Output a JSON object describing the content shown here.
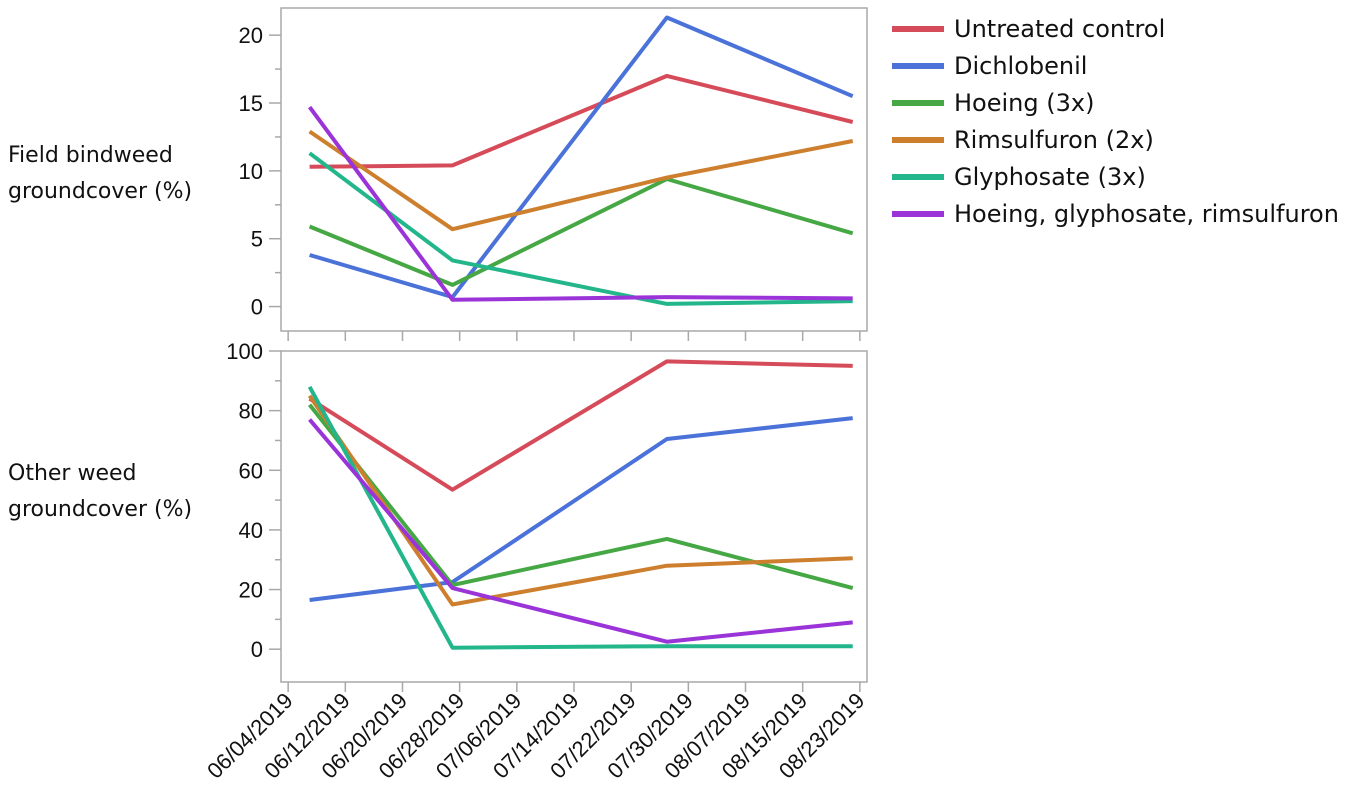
{
  "chart_data": [
    {
      "type": "line",
      "ylabel_lines": [
        "Field bindweed",
        "groundcover (%)"
      ],
      "ylim": [
        -1.8,
        22
      ],
      "yticks": [
        0,
        5,
        10,
        15,
        20
      ],
      "x": [
        "06/07/2019",
        "06/27/2019",
        "07/27/2019",
        "08/22/2019"
      ],
      "series": [
        {
          "name": "Untreated control",
          "values": [
            10.3,
            10.4,
            17.0,
            13.6
          ]
        },
        {
          "name": "Dichlobenil",
          "values": [
            3.8,
            0.7,
            21.3,
            15.5
          ]
        },
        {
          "name": "Hoeing (3x)",
          "values": [
            5.9,
            1.6,
            9.4,
            5.4
          ]
        },
        {
          "name": "Rimsulfuron (2x)",
          "values": [
            12.9,
            5.7,
            9.5,
            12.2
          ]
        },
        {
          "name": "Glyphosate (3x)",
          "values": [
            11.3,
            3.4,
            0.2,
            0.4
          ]
        },
        {
          "name": "Hoeing, glyphosate, rimsulfuron",
          "values": [
            14.7,
            0.5,
            0.7,
            0.6
          ]
        }
      ]
    },
    {
      "type": "line",
      "ylabel_lines": [
        "Other weed",
        "groundcover (%)"
      ],
      "ylim": [
        -11,
        100
      ],
      "yticks": [
        0,
        20,
        40,
        60,
        80,
        100
      ],
      "x": [
        "06/07/2019",
        "06/27/2019",
        "07/27/2019",
        "08/22/2019"
      ],
      "series": [
        {
          "name": "Untreated control",
          "values": [
            84,
            53.5,
            96.5,
            95
          ]
        },
        {
          "name": "Dichlobenil",
          "values": [
            16.5,
            22.5,
            70.5,
            77.5
          ]
        },
        {
          "name": "Hoeing (3x)",
          "values": [
            82,
            21.5,
            37,
            20.5
          ]
        },
        {
          "name": "Rimsulfuron (2x)",
          "values": [
            85,
            15,
            28,
            30.5
          ]
        },
        {
          "name": "Glyphosate (3x)",
          "values": [
            88,
            0.5,
            1,
            1
          ]
        },
        {
          "name": "Hoeing, glyphosate, rimsulfuron",
          "values": [
            77,
            20.5,
            2.5,
            9
          ]
        }
      ]
    }
  ],
  "x_axis": {
    "range": [
      "06/03/2019",
      "08/24/2019"
    ],
    "tick_labels": [
      "06/04/2019",
      "06/12/2019",
      "06/20/2019",
      "06/28/2019",
      "07/06/2019",
      "07/14/2019",
      "07/22/2019",
      "07/30/2019",
      "08/07/2019",
      "08/15/2019",
      "08/23/2019"
    ]
  },
  "legend": {
    "placement": "right",
    "items": [
      {
        "label": "Untreated control",
        "color": "#d64b5a"
      },
      {
        "label": "Dichlobenil",
        "color": "#4a72d9"
      },
      {
        "label": "Hoeing (3x)",
        "color": "#46a844"
      },
      {
        "label": "Rimsulfuron (2x)",
        "color": "#cd7f2e"
      },
      {
        "label": "Glyphosate (3x)",
        "color": "#22b68a"
      },
      {
        "label": "Hoeing, glyphosate, rimsulfuron",
        "color": "#9b34d8"
      }
    ]
  },
  "colors": {
    "frame": "#a8a8a8",
    "text": "#111111"
  }
}
